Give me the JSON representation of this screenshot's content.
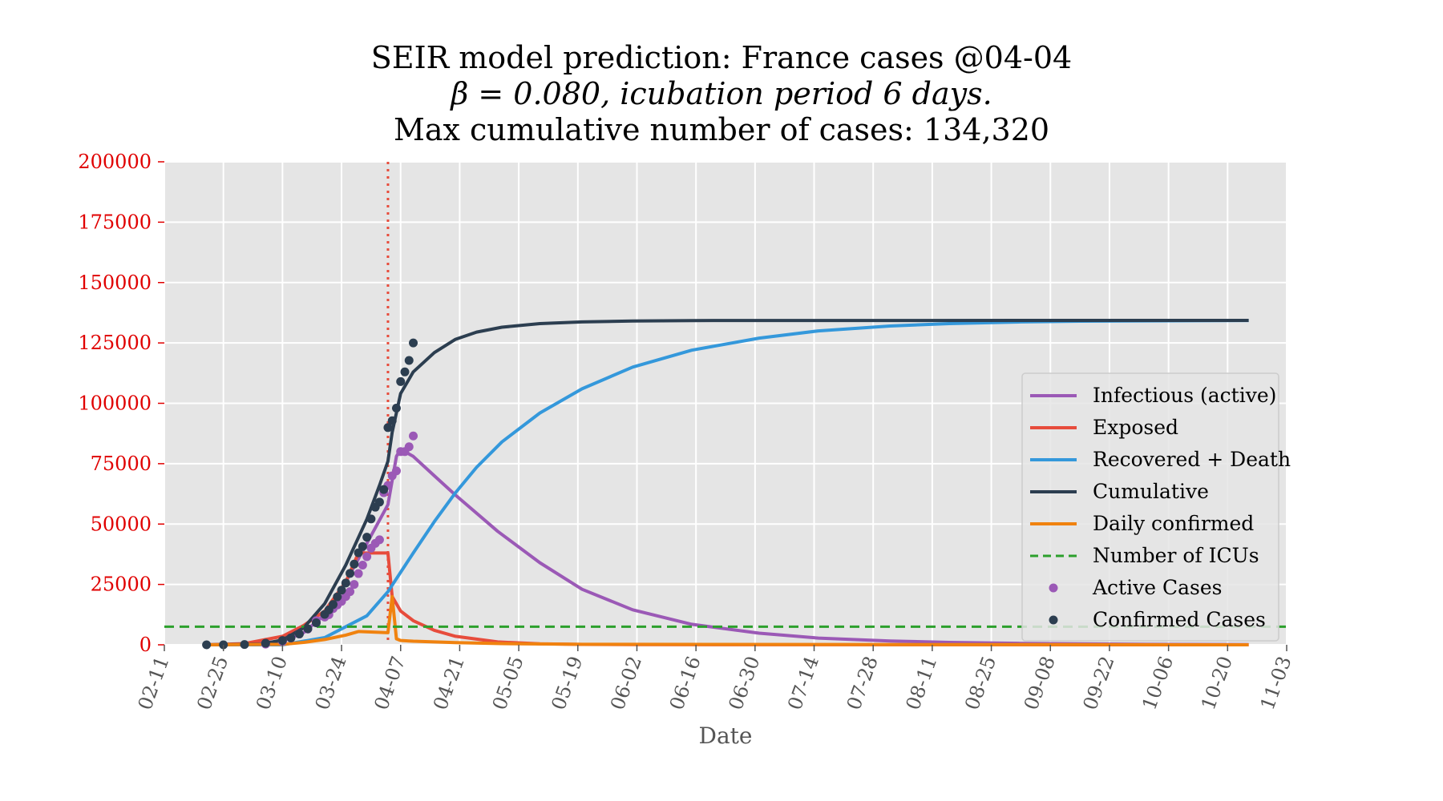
{
  "title": {
    "line1": "SEIR model prediction: France cases @04-04",
    "line2": "β = 0.080, icubation period 6 days.",
    "line3": "Max cumulative number of cases: 134,320"
  },
  "chart_data": {
    "type": "line",
    "title": "SEIR model prediction: France cases @04-04\nβ = 0.080, icubation period 6 days.\nMax cumulative number of cases: 134,320",
    "xlabel": "Date",
    "ylabel": "",
    "ylim": [
      0,
      200000
    ],
    "xlim": [
      "02-11",
      "11-03"
    ],
    "grid": true,
    "legend_position": "right",
    "colors": {
      "background": "#e5e5e5",
      "ytick_label": "#e00000"
    },
    "x_ticks": [
      "02-11",
      "02-25",
      "03-10",
      "03-24",
      "04-07",
      "04-21",
      "05-05",
      "05-19",
      "06-02",
      "06-16",
      "06-30",
      "07-14",
      "07-28",
      "08-11",
      "08-25",
      "09-08",
      "09-22",
      "10-06",
      "10-20",
      "11-03"
    ],
    "y_ticks": [
      0,
      25000,
      50000,
      75000,
      100000,
      125000,
      150000,
      175000,
      200000
    ],
    "reference_lines": [
      {
        "type": "vertical",
        "x": "04-04",
        "color": "#e74c3c",
        "style": "dotted"
      },
      {
        "type": "horizontal",
        "y": 7500,
        "color": "#2ca02c",
        "style": "dashed",
        "name": "Number of ICUs"
      }
    ],
    "series": [
      {
        "name": "Infectious (active)",
        "color": "#9b59b6",
        "kind": "line",
        "x": [
          "02-21",
          "03-01",
          "03-10",
          "03-15",
          "03-20",
          "03-25",
          "03-30",
          "04-04",
          "04-06",
          "04-07",
          "04-10",
          "04-15",
          "04-20",
          "04-30",
          "05-10",
          "05-20",
          "06-01",
          "06-15",
          "07-01",
          "07-15",
          "08-01",
          "08-15",
          "09-01",
          "10-01",
          "10-25"
        ],
        "y": [
          0,
          200,
          1500,
          5000,
          12500,
          26000,
          42000,
          58000,
          78000,
          81000,
          78000,
          70000,
          62000,
          47000,
          34000,
          23000,
          14500,
          8500,
          4800,
          2800,
          1600,
          1000,
          600,
          200,
          100
        ]
      },
      {
        "name": "Exposed",
        "color": "#e74c3c",
        "kind": "line",
        "x": [
          "02-21",
          "03-01",
          "03-10",
          "03-15",
          "03-20",
          "03-25",
          "03-28",
          "04-04",
          "04-05",
          "04-07",
          "04-10",
          "04-15",
          "04-20",
          "04-30",
          "05-10",
          "05-20",
          "06-01",
          "10-25"
        ],
        "y": [
          0,
          500,
          3500,
          8000,
          14000,
          26000,
          38000,
          38000,
          20000,
          14000,
          10000,
          6000,
          3500,
          1200,
          400,
          150,
          50,
          0
        ]
      },
      {
        "name": "Recovered + Death",
        "color": "#3498db",
        "kind": "line",
        "x": [
          "02-21",
          "03-10",
          "03-20",
          "03-30",
          "04-04",
          "04-10",
          "04-15",
          "04-20",
          "04-25",
          "05-01",
          "05-10",
          "05-20",
          "06-01",
          "06-15",
          "07-01",
          "07-15",
          "08-01",
          "08-15",
          "09-01",
          "09-15",
          "10-25"
        ],
        "y": [
          0,
          0,
          3000,
          12000,
          22000,
          38000,
          51000,
          63000,
          73500,
          84000,
          96000,
          106000,
          115000,
          122000,
          127000,
          130000,
          132000,
          133000,
          133700,
          134000,
          134300
        ]
      },
      {
        "name": "Cumulative",
        "color": "#2c3e50",
        "kind": "line",
        "x": [
          "02-21",
          "03-05",
          "03-10",
          "03-15",
          "03-20",
          "03-25",
          "03-30",
          "04-02",
          "04-04",
          "04-05",
          "04-07",
          "04-10",
          "04-15",
          "04-20",
          "04-25",
          "05-01",
          "05-10",
          "05-20",
          "06-01",
          "06-15",
          "07-01",
          "10-25"
        ],
        "y": [
          0,
          300,
          2000,
          7000,
          17000,
          33000,
          52000,
          66000,
          76000,
          88000,
          104000,
          113000,
          121000,
          126500,
          129500,
          131500,
          133000,
          133700,
          134100,
          134250,
          134300,
          134320
        ]
      },
      {
        "name": "Daily confirmed",
        "color": "#f0820f",
        "kind": "line",
        "x": [
          "02-21",
          "03-10",
          "03-15",
          "03-20",
          "03-25",
          "03-28",
          "04-04",
          "04-05",
          "04-06",
          "04-07",
          "04-10",
          "04-20",
          "05-01",
          "05-20",
          "10-25"
        ],
        "y": [
          0,
          200,
          1000,
          2200,
          4000,
          5500,
          5000,
          20000,
          2500,
          1800,
          1500,
          900,
          500,
          200,
          0
        ]
      },
      {
        "name": "Number of ICUs",
        "color": "#2ca02c",
        "kind": "hline",
        "y": 7500
      },
      {
        "name": "Active Cases",
        "color": "#9b59b6",
        "kind": "scatter",
        "x": [
          "03-06",
          "03-10",
          "03-12",
          "03-14",
          "03-16",
          "03-18",
          "03-20",
          "03-21",
          "03-22",
          "03-23",
          "03-24",
          "03-25",
          "03-26",
          "03-27",
          "03-28",
          "03-29",
          "03-30",
          "03-31",
          "04-01",
          "04-02",
          "04-03",
          "04-04",
          "04-05",
          "04-06",
          "04-07",
          "04-08",
          "04-09",
          "04-10"
        ],
        "y": [
          300,
          1400,
          2800,
          4500,
          6500,
          10000,
          11500,
          12500,
          15000,
          16500,
          18000,
          20000,
          22000,
          25000,
          29500,
          33000,
          36500,
          40000,
          42000,
          43500,
          63000,
          66000,
          70000,
          72000,
          80000,
          80000,
          82000,
          86500
        ]
      },
      {
        "name": "Confirmed Cases",
        "color": "#2c3e50",
        "kind": "scatter",
        "x": [
          "02-21",
          "02-25",
          "03-01",
          "03-06",
          "03-10",
          "03-12",
          "03-14",
          "03-16",
          "03-18",
          "03-20",
          "03-21",
          "03-22",
          "03-23",
          "03-24",
          "03-25",
          "03-26",
          "03-27",
          "03-28",
          "03-29",
          "03-30",
          "03-31",
          "04-01",
          "04-02",
          "04-03",
          "04-04",
          "04-05",
          "04-06",
          "04-07",
          "04-08",
          "04-09",
          "04-10"
        ],
        "y": [
          12,
          14,
          130,
          650,
          1780,
          2880,
          4500,
          6630,
          9130,
          12600,
          14460,
          16690,
          19860,
          22630,
          25600,
          29580,
          33410,
          38110,
          40710,
          44550,
          52130,
          56990,
          59100,
          64300,
          89950,
          92800,
          98000,
          109000,
          113000,
          117750,
          125000
        ]
      }
    ]
  }
}
